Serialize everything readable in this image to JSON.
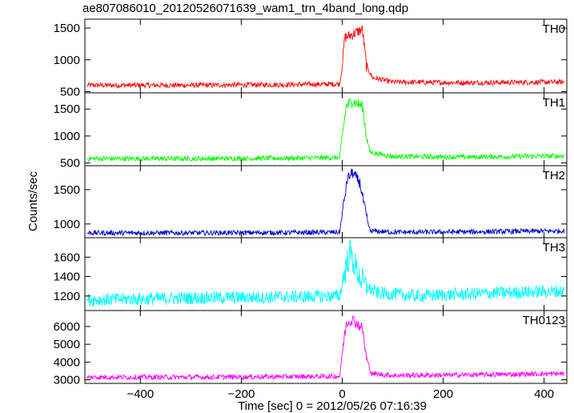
{
  "title": "ae807086010_20120526071639_wam1_trn_4band_long.qdp",
  "chart_data": {
    "type": "line",
    "title": "ae807086010_20120526071639_wam1_trn_4band_long.qdp",
    "xlabel": "Time [sec] 0 = 2012/05/26 07:16:39",
    "ylabel": "Counts/sec",
    "xlim": [
      -510,
      445
    ],
    "x_ticks": [
      -400,
      -200,
      0,
      200,
      400
    ],
    "grid": false,
    "panels": [
      {
        "name": "TH0",
        "color": "#ff0000",
        "ylim": [
          480,
          1640
        ],
        "y_ticks": [
          500,
          1000,
          1500
        ],
        "series": [
          {
            "x": -500,
            "y": 600
          },
          {
            "x": -300,
            "y": 600
          },
          {
            "x": -100,
            "y": 610
          },
          {
            "x": -5,
            "y": 620
          },
          {
            "x": 0,
            "y": 900
          },
          {
            "x": 5,
            "y": 1350
          },
          {
            "x": 20,
            "y": 1400
          },
          {
            "x": 40,
            "y": 1480
          },
          {
            "x": 48,
            "y": 900
          },
          {
            "x": 60,
            "y": 720
          },
          {
            "x": 100,
            "y": 650
          },
          {
            "x": 250,
            "y": 640
          },
          {
            "x": 440,
            "y": 650
          }
        ]
      },
      {
        "name": "TH1",
        "color": "#00ff00",
        "ylim": [
          450,
          1800
        ],
        "y_ticks": [
          500,
          1000,
          1500
        ],
        "series": [
          {
            "x": -500,
            "y": 580
          },
          {
            "x": -300,
            "y": 580
          },
          {
            "x": -100,
            "y": 590
          },
          {
            "x": -5,
            "y": 600
          },
          {
            "x": 0,
            "y": 1000
          },
          {
            "x": 8,
            "y": 1550
          },
          {
            "x": 20,
            "y": 1650
          },
          {
            "x": 40,
            "y": 1550
          },
          {
            "x": 48,
            "y": 1000
          },
          {
            "x": 55,
            "y": 700
          },
          {
            "x": 100,
            "y": 620
          },
          {
            "x": 250,
            "y": 610
          },
          {
            "x": 440,
            "y": 630
          }
        ]
      },
      {
        "name": "TH2",
        "color": "#0000cc",
        "ylim": [
          800,
          1850
        ],
        "y_ticks": [
          1000,
          1500
        ],
        "y_tick_labels": [
          "1000",
          "1500"
        ],
        "series": [
          {
            "x": -500,
            "y": 870
          },
          {
            "x": -300,
            "y": 870
          },
          {
            "x": -100,
            "y": 875
          },
          {
            "x": -5,
            "y": 880
          },
          {
            "x": 0,
            "y": 1150
          },
          {
            "x": 10,
            "y": 1650
          },
          {
            "x": 20,
            "y": 1750
          },
          {
            "x": 35,
            "y": 1600
          },
          {
            "x": 48,
            "y": 1100
          },
          {
            "x": 55,
            "y": 900
          },
          {
            "x": 100,
            "y": 880
          },
          {
            "x": 250,
            "y": 885
          },
          {
            "x": 440,
            "y": 900
          }
        ]
      },
      {
        "name": "TH3",
        "color": "#00ffff",
        "ylim": [
          1050,
          1800
        ],
        "y_ticks": [
          1200,
          1400,
          1600
        ],
        "series": [
          {
            "x": -500,
            "y": 1160
          },
          {
            "x": -300,
            "y": 1180
          },
          {
            "x": -100,
            "y": 1190
          },
          {
            "x": -5,
            "y": 1200
          },
          {
            "x": 5,
            "y": 1450
          },
          {
            "x": 15,
            "y": 1650
          },
          {
            "x": 30,
            "y": 1450
          },
          {
            "x": 45,
            "y": 1300
          },
          {
            "x": 70,
            "y": 1230
          },
          {
            "x": 150,
            "y": 1200
          },
          {
            "x": 300,
            "y": 1230
          },
          {
            "x": 440,
            "y": 1250
          }
        ]
      },
      {
        "name": "TH0123",
        "color": "#ff00ff",
        "ylim": [
          2800,
          6900
        ],
        "y_ticks": [
          3000,
          4000,
          5000,
          6000
        ],
        "series": [
          {
            "x": -500,
            "y": 3150
          },
          {
            "x": -300,
            "y": 3150
          },
          {
            "x": -100,
            "y": 3180
          },
          {
            "x": -5,
            "y": 3200
          },
          {
            "x": 0,
            "y": 4500
          },
          {
            "x": 8,
            "y": 6200
          },
          {
            "x": 20,
            "y": 6400
          },
          {
            "x": 40,
            "y": 5900
          },
          {
            "x": 48,
            "y": 4200
          },
          {
            "x": 58,
            "y": 3350
          },
          {
            "x": 100,
            "y": 3250
          },
          {
            "x": 250,
            "y": 3280
          },
          {
            "x": 440,
            "y": 3350
          }
        ]
      }
    ]
  }
}
